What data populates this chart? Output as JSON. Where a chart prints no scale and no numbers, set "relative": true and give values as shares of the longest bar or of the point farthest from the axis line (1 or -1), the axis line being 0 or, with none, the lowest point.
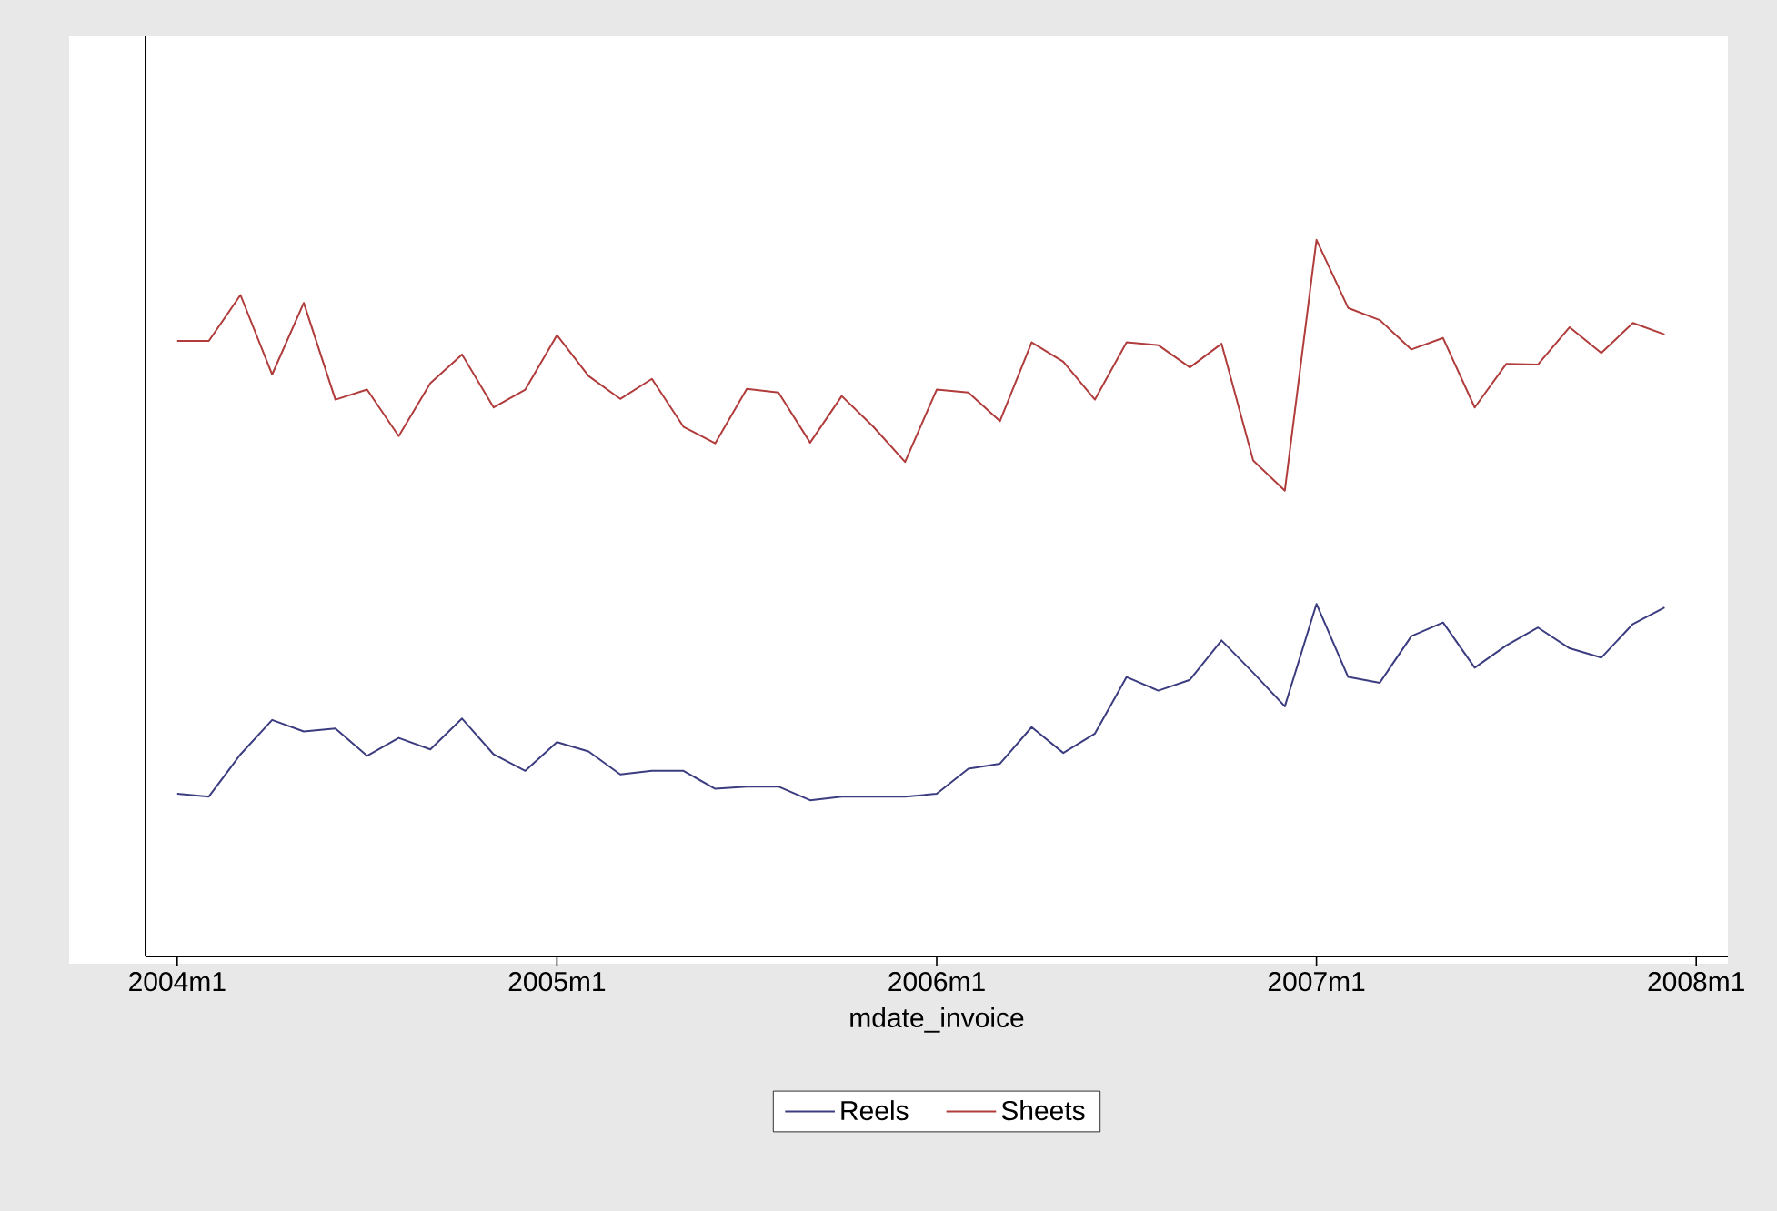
{
  "chart_data": {
    "type": "line",
    "xlabel": "mdate_invoice",
    "relative": true,
    "legend": "bottom",
    "x": [
      "2004-01",
      "2004-02",
      "2004-03",
      "2004-04",
      "2004-05",
      "2004-06",
      "2004-07",
      "2004-08",
      "2004-09",
      "2004-10",
      "2004-11",
      "2004-12",
      "2005-01",
      "2005-02",
      "2005-03",
      "2005-04",
      "2005-05",
      "2005-06",
      "2005-07",
      "2005-08",
      "2005-09",
      "2005-10",
      "2005-11",
      "2005-12",
      "2006-01",
      "2006-02",
      "2006-03",
      "2006-04",
      "2006-05",
      "2006-06",
      "2006-07",
      "2006-08",
      "2006-09",
      "2006-10",
      "2006-11",
      "2006-12",
      "2007-01",
      "2007-02",
      "2007-03",
      "2007-04",
      "2007-05",
      "2007-06",
      "2007-07",
      "2007-08",
      "2007-09",
      "2007-10",
      "2007-11",
      "2007-12"
    ],
    "xlim": [
      "2003-12",
      "2008-02"
    ],
    "xticks": [
      {
        "value": "2004-01",
        "label": "2004m1"
      },
      {
        "value": "2005-01",
        "label": "2005m1"
      },
      {
        "value": "2006-01",
        "label": "2006m1"
      },
      {
        "value": "2007-01",
        "label": "2007m1"
      },
      {
        "value": "2008-01",
        "label": "2008m1"
      }
    ],
    "series": [
      {
        "name": "Reels",
        "color": "#3c3c80",
        "values": [
          0.227,
          0.223,
          0.282,
          0.33,
          0.314,
          0.318,
          0.28,
          0.305,
          0.289,
          0.332,
          0.282,
          0.259,
          0.299,
          0.286,
          0.254,
          0.259,
          0.259,
          0.234,
          0.237,
          0.237,
          0.218,
          0.223,
          0.223,
          0.223,
          0.227,
          0.262,
          0.269,
          0.32,
          0.284,
          0.311,
          0.39,
          0.371,
          0.386,
          0.441,
          0.396,
          0.349,
          0.492,
          0.39,
          0.382,
          0.447,
          0.466,
          0.403,
          0.434,
          0.459,
          0.43,
          0.417,
          0.464,
          0.487
        ]
      },
      {
        "name": "Sheets",
        "color": "#b03c3c",
        "values": [
          0.859,
          0.859,
          0.923,
          0.812,
          0.912,
          0.777,
          0.791,
          0.726,
          0.8,
          0.84,
          0.766,
          0.791,
          0.867,
          0.81,
          0.778,
          0.806,
          0.739,
          0.716,
          0.792,
          0.787,
          0.717,
          0.782,
          0.739,
          0.69,
          0.791,
          0.787,
          0.747,
          0.857,
          0.83,
          0.777,
          0.857,
          0.853,
          0.822,
          0.855,
          0.692,
          0.65,
          1.0,
          0.905,
          0.888,
          0.847,
          0.863,
          0.766,
          0.827,
          0.826,
          0.878,
          0.842,
          0.884,
          0.868
        ]
      }
    ]
  }
}
